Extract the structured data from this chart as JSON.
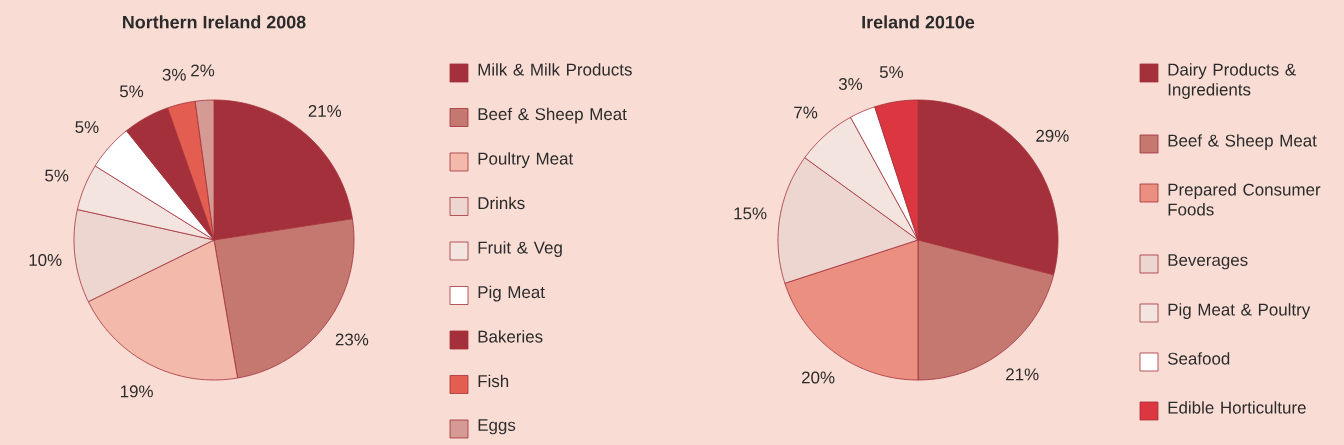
{
  "chart_data": [
    {
      "type": "pie",
      "title": "Northern Ireland 2008",
      "legend": "right",
      "categories": [
        "Milk & Milk Products",
        "Beef & Sheep Meat",
        "Poultry Meat",
        "Drinks",
        "Fruit & Veg",
        "Pig Meat",
        "Bakeries",
        "Fish",
        "Eggs"
      ],
      "values": [
        21,
        23,
        19,
        10,
        5,
        5,
        5,
        3,
        2
      ],
      "value_labels": [
        "21%",
        "23%",
        "19%",
        "10%",
        "5%",
        "5%",
        "5%",
        "3%",
        "2%"
      ],
      "colors": [
        "#a3303a",
        "#c47870",
        "#f3b9ab",
        "#edd6d0",
        "#f3e4df",
        "#ffffff",
        "#a3303a",
        "#e35e50",
        "#d49a93"
      ]
    },
    {
      "type": "pie",
      "title": "Ireland 2010e",
      "legend": "right",
      "categories": [
        "Dairy Products & Ingredients",
        "Beef & Sheep Meat",
        "Prepared Consumer Foods",
        "Beverages",
        "Pig Meat & Poultry",
        "Seafood",
        "Edible Horticulture"
      ],
      "values": [
        29,
        21,
        20,
        15,
        7,
        3,
        5
      ],
      "value_labels": [
        "29%",
        "21%",
        "20%",
        "15%",
        "7%",
        "3%",
        "5%"
      ],
      "colors": [
        "#a3303a",
        "#c47870",
        "#eb8f80",
        "#edd6d0",
        "#f3e4df",
        "#ffffff",
        "#dc3741"
      ]
    }
  ]
}
